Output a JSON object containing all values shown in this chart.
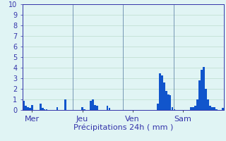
{
  "title": "",
  "xlabel": "Précipitations 24h ( mm )",
  "ylabel": "",
  "background_color": "#e0f4f4",
  "bar_color": "#1155cc",
  "ylim": [
    0,
    10
  ],
  "yticks": [
    0,
    1,
    2,
    3,
    4,
    5,
    6,
    7,
    8,
    9,
    10
  ],
  "day_labels": [
    "Mer",
    "Jeu",
    "Ven",
    "Sam"
  ],
  "day_positions": [
    4,
    28,
    52,
    76
  ],
  "n_bars": 96,
  "values": [
    0.9,
    0.4,
    0.3,
    0.2,
    0.5,
    0.0,
    0.0,
    0.0,
    0.6,
    0.2,
    0.1,
    0.1,
    0.0,
    0.0,
    0.0,
    0.0,
    0.3,
    0.0,
    0.0,
    0.0,
    1.0,
    0.0,
    0.0,
    0.0,
    0.0,
    0.0,
    0.0,
    0.0,
    0.3,
    0.1,
    0.0,
    0.0,
    0.9,
    1.0,
    0.5,
    0.4,
    0.0,
    0.0,
    0.0,
    0.0,
    0.4,
    0.2,
    0.0,
    0.0,
    0.0,
    0.0,
    0.0,
    0.0,
    0.0,
    0.0,
    0.0,
    0.0,
    0.0,
    0.0,
    0.0,
    0.0,
    0.0,
    0.0,
    0.0,
    0.0,
    0.0,
    0.0,
    0.0,
    0.0,
    0.6,
    3.5,
    3.3,
    2.6,
    1.8,
    1.5,
    1.4,
    0.3,
    0.1,
    0.0,
    0.0,
    0.0,
    0.0,
    0.0,
    0.0,
    0.0,
    0.3,
    0.3,
    0.4,
    1.0,
    2.8,
    3.8,
    4.1,
    2.0,
    1.0,
    0.4,
    0.3,
    0.3,
    0.1,
    0.0,
    0.0,
    0.2
  ],
  "grid_color": "#bbddcc",
  "vline_color": "#6688aa",
  "axis_color": "#3333aa",
  "tick_color": "#3333aa",
  "xlabel_color": "#3333aa",
  "xlabel_fontsize": 8,
  "day_label_fontsize": 8,
  "ytick_fontsize": 7,
  "figsize": [
    3.2,
    2.0
  ],
  "dpi": 100
}
